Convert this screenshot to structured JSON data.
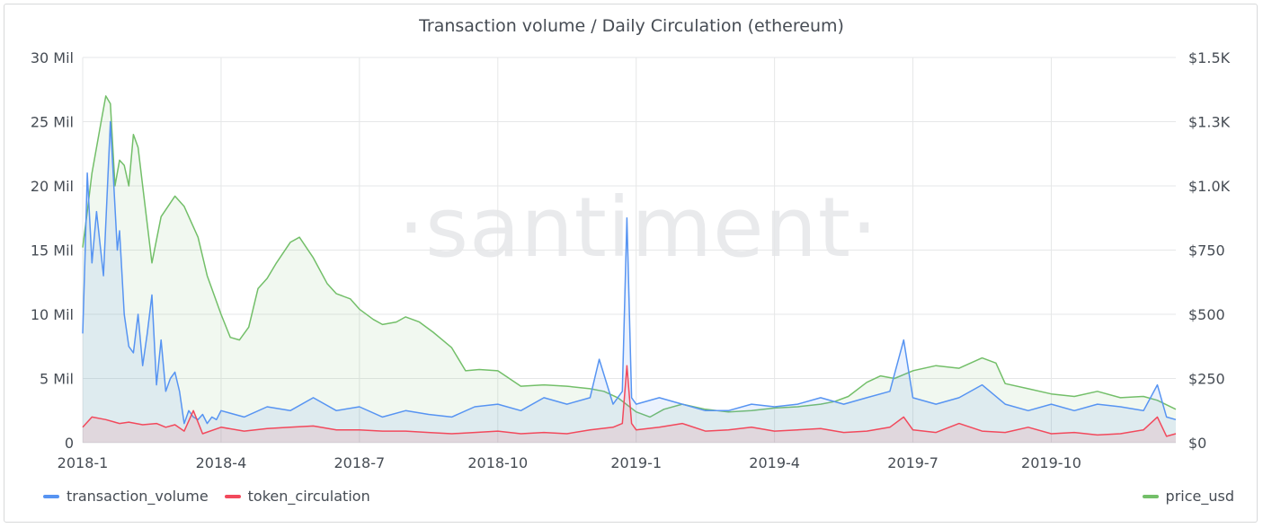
{
  "chart_data": {
    "type": "line",
    "title": "Transaction volume / Daily Circulation (ethereum)",
    "watermark": "·santiment·",
    "x_ticks": [
      "2018-1",
      "2018-4",
      "2018-7",
      "2018-10",
      "2019-1",
      "2019-4",
      "2019-7",
      "2019-10"
    ],
    "y_left": {
      "ticks": [
        "0",
        "5 Mil",
        "10 Mil",
        "15 Mil",
        "20 Mil",
        "25 Mil",
        "30 Mil"
      ],
      "range": [
        0,
        30000000
      ]
    },
    "y_right": {
      "ticks": [
        "$0",
        "$250",
        "$500",
        "$750",
        "$1.0K",
        "$1.3K",
        "$1.5K"
      ],
      "range": [
        0,
        1500
      ]
    },
    "x_range_months": [
      0,
      23.7
    ],
    "grid": true,
    "legend_placement": "bottom",
    "series": [
      {
        "name": "transaction_volume",
        "axis": "left",
        "color": "#5794f2",
        "fill": "rgba(87,148,242,0.12)",
        "x": [
          0,
          0.05,
          0.1,
          0.2,
          0.3,
          0.45,
          0.6,
          0.75,
          0.8,
          0.9,
          1.0,
          1.1,
          1.2,
          1.3,
          1.4,
          1.5,
          1.6,
          1.7,
          1.8,
          1.9,
          2.0,
          2.1,
          2.2,
          2.3,
          2.4,
          2.5,
          2.6,
          2.7,
          2.8,
          2.9,
          3.0,
          3.5,
          4.0,
          4.5,
          5.0,
          5.5,
          6.0,
          6.5,
          7.0,
          7.5,
          8.0,
          8.5,
          9.0,
          9.5,
          10.0,
          10.5,
          11.0,
          11.2,
          11.5,
          11.7,
          11.8,
          11.9,
          12.0,
          12.5,
          13.0,
          13.5,
          14.0,
          14.5,
          15.0,
          15.5,
          16.0,
          16.5,
          17.0,
          17.5,
          17.8,
          18.0,
          18.5,
          19.0,
          19.5,
          20.0,
          20.5,
          21.0,
          21.5,
          22.0,
          22.5,
          23.0,
          23.3,
          23.5,
          23.7
        ],
        "values": [
          8500000,
          14500000,
          21000000,
          14000000,
          18000000,
          13000000,
          25000000,
          15000000,
          16500000,
          10000000,
          7500000,
          7000000,
          10000000,
          6000000,
          8500000,
          11500000,
          4500000,
          8000000,
          4000000,
          5000000,
          5500000,
          4000000,
          1500000,
          2500000,
          2000000,
          1800000,
          2200000,
          1500000,
          2000000,
          1800000,
          2500000,
          2000000,
          2800000,
          2500000,
          3500000,
          2500000,
          2800000,
          2000000,
          2500000,
          2200000,
          2000000,
          2800000,
          3000000,
          2500000,
          3500000,
          3000000,
          3500000,
          6500000,
          3000000,
          4000000,
          17500000,
          3500000,
          3000000,
          3500000,
          3000000,
          2500000,
          2500000,
          3000000,
          2800000,
          3000000,
          3500000,
          3000000,
          3500000,
          4000000,
          8000000,
          3500000,
          3000000,
          3500000,
          4500000,
          3000000,
          2500000,
          3000000,
          2500000,
          3000000,
          2800000,
          2500000,
          4500000,
          2000000,
          1800000
        ]
      },
      {
        "name": "token_circulation",
        "axis": "left",
        "color": "#f2495c",
        "fill": "rgba(242,73,92,0.12)",
        "x": [
          0,
          0.2,
          0.5,
          0.8,
          1.0,
          1.3,
          1.6,
          1.8,
          2.0,
          2.2,
          2.4,
          2.6,
          3.0,
          3.5,
          4.0,
          4.5,
          5.0,
          5.5,
          6.0,
          6.5,
          7.0,
          7.5,
          8.0,
          8.5,
          9.0,
          9.5,
          10.0,
          10.5,
          11.0,
          11.5,
          11.7,
          11.8,
          11.9,
          12.0,
          12.5,
          13.0,
          13.5,
          14.0,
          14.5,
          15.0,
          15.5,
          16.0,
          16.5,
          17.0,
          17.5,
          17.8,
          18.0,
          18.5,
          19.0,
          19.5,
          20.0,
          20.5,
          21.0,
          21.5,
          22.0,
          22.5,
          23.0,
          23.3,
          23.5,
          23.7
        ],
        "values": [
          1200000,
          2000000,
          1800000,
          1500000,
          1600000,
          1400000,
          1500000,
          1200000,
          1400000,
          900000,
          2500000,
          700000,
          1200000,
          900000,
          1100000,
          1200000,
          1300000,
          1000000,
          1000000,
          900000,
          900000,
          800000,
          700000,
          800000,
          900000,
          700000,
          800000,
          700000,
          1000000,
          1200000,
          1500000,
          6000000,
          1500000,
          1000000,
          1200000,
          1500000,
          900000,
          1000000,
          1200000,
          900000,
          1000000,
          1100000,
          800000,
          900000,
          1200000,
          2000000,
          1000000,
          800000,
          1500000,
          900000,
          800000,
          1200000,
          700000,
          800000,
          600000,
          700000,
          1000000,
          2000000,
          500000,
          700000
        ]
      },
      {
        "name": "price_usd",
        "axis": "right",
        "color": "#73bf69",
        "fill": "rgba(115,191,105,0.10)",
        "x": [
          0,
          0.1,
          0.2,
          0.3,
          0.4,
          0.5,
          0.6,
          0.7,
          0.8,
          0.9,
          1.0,
          1.1,
          1.2,
          1.3,
          1.5,
          1.7,
          2.0,
          2.2,
          2.5,
          2.7,
          3.0,
          3.2,
          3.4,
          3.6,
          3.8,
          4.0,
          4.2,
          4.5,
          4.7,
          5.0,
          5.3,
          5.5,
          5.8,
          6.0,
          6.3,
          6.5,
          6.8,
          7.0,
          7.3,
          7.6,
          7.8,
          8.0,
          8.3,
          8.6,
          9.0,
          9.5,
          10.0,
          10.5,
          11.0,
          11.3,
          11.6,
          12.0,
          12.3,
          12.6,
          13.0,
          13.5,
          14.0,
          14.5,
          15.0,
          15.5,
          16.0,
          16.3,
          16.6,
          17.0,
          17.3,
          17.6,
          18.0,
          18.5,
          19.0,
          19.5,
          19.8,
          20.0,
          20.5,
          21.0,
          21.5,
          22.0,
          22.5,
          23.0,
          23.3,
          23.7
        ],
        "values": [
          760,
          900,
          1050,
          1150,
          1250,
          1350,
          1320,
          1000,
          1100,
          1080,
          1000,
          1200,
          1150,
          1000,
          700,
          880,
          960,
          920,
          800,
          650,
          500,
          410,
          400,
          450,
          600,
          640,
          700,
          780,
          800,
          720,
          620,
          580,
          560,
          520,
          480,
          460,
          470,
          490,
          470,
          430,
          400,
          370,
          280,
          285,
          280,
          220,
          225,
          220,
          210,
          200,
          175,
          120,
          100,
          130,
          150,
          130,
          120,
          125,
          135,
          140,
          150,
          160,
          180,
          235,
          260,
          250,
          280,
          300,
          290,
          330,
          310,
          230,
          210,
          190,
          180,
          200,
          175,
          180,
          165,
          130
        ]
      }
    ]
  },
  "legend": {
    "items": [
      {
        "label": "transaction_volume",
        "color": "#5794f2"
      },
      {
        "label": "token_circulation",
        "color": "#f2495c"
      }
    ],
    "right_item": {
      "label": "price_usd",
      "color": "#73bf69"
    }
  }
}
